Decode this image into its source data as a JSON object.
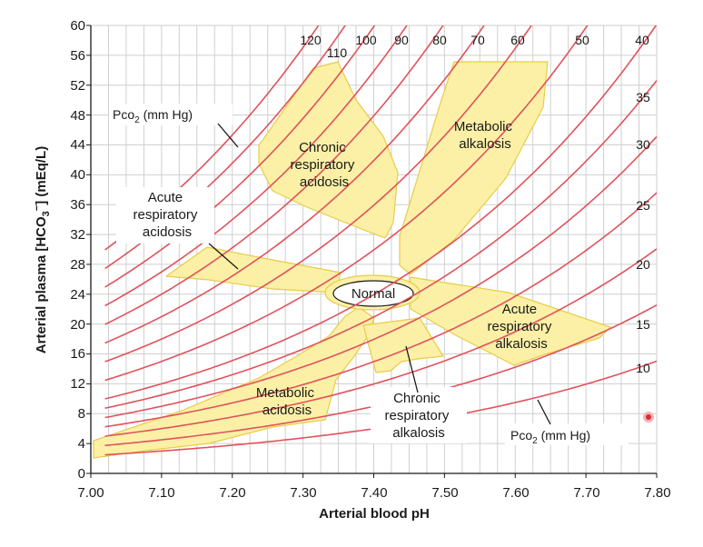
{
  "chart": {
    "xlabel": "Arterial blood pH",
    "ylabel_main": "Arterial plasma [HCO",
    "ylabel_sub": "3",
    "ylabel_sup": "−",
    "ylabel_end": "] (mEq/L)"
  },
  "chart_data": {
    "type": "diagram",
    "x_axis": {
      "min": 7.0,
      "max": 7.8,
      "ticks": [
        "7.00",
        "7.10",
        "7.20",
        "7.30",
        "7.40",
        "7.50",
        "7.60",
        "7.70",
        "7.80"
      ]
    },
    "y_axis": {
      "min": 0,
      "max": 60,
      "ticks": [
        "0",
        "4",
        "8",
        "12",
        "16",
        "20",
        "24",
        "28",
        "32",
        "36",
        "40",
        "44",
        "48",
        "52",
        "56",
        "60"
      ]
    },
    "isobar_unit_label": {
      "pre": "Pco",
      "sub": "2",
      "post": " (mm Hg)"
    },
    "isobars_pco2": [
      10,
      15,
      20,
      25,
      30,
      35,
      40,
      50,
      60,
      70,
      80,
      90,
      100,
      110,
      120
    ],
    "isobar_labels": {
      "p120": "120",
      "p110": "110",
      "p100": "100",
      "p90": "90",
      "p80": "80",
      "p70": "70",
      "p60": "60",
      "p50": "50",
      "p40": "40",
      "p35": "35",
      "p30": "30",
      "p25": "25",
      "p20": "20",
      "p15": "15",
      "p10": "10"
    },
    "zones": {
      "normal": "Normal",
      "chronic_acidosis": [
        "Chronic",
        "respiratory",
        "acidosis"
      ],
      "acute_acidosis": [
        "Acute",
        "respiratory",
        "acidosis"
      ],
      "metabolic_alkalosis": [
        "Metabolic",
        "alkalosis"
      ],
      "acute_alkalosis": [
        "Acute",
        "respiratory",
        "alkalosis"
      ],
      "metabolic_acidosis": [
        "Metabolic",
        "acidosis"
      ],
      "chronic_alkalosis": [
        "Chronic",
        "respiratory",
        "alkalosis"
      ]
    }
  }
}
